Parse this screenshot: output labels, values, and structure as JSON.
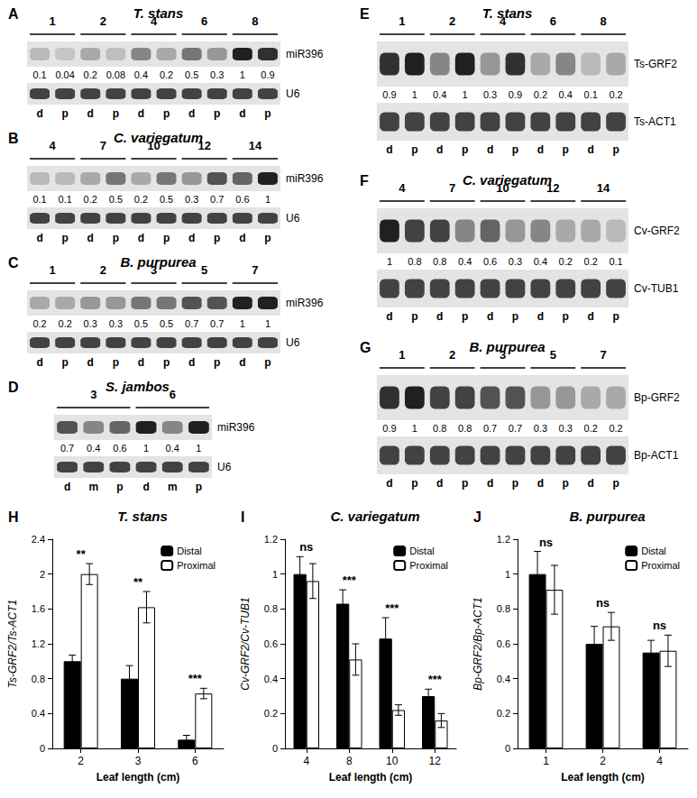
{
  "chart_data": [
    {
      "type": "blot",
      "panel": "A",
      "title": "T. stans",
      "groups": [
        "1",
        "2",
        "4",
        "6",
        "8"
      ],
      "lanes": [
        "d",
        "p",
        "d",
        "p",
        "d",
        "p",
        "d",
        "p",
        "d",
        "p"
      ],
      "rows": [
        {
          "label": "miR396",
          "values": [
            0.1,
            0.04,
            0.2,
            0.08,
            0.4,
            0.2,
            0.5,
            0.3,
            1,
            0.9
          ]
        },
        {
          "label": "U6"
        }
      ]
    },
    {
      "type": "blot",
      "panel": "B",
      "title": "C. variegatum",
      "groups": [
        "4",
        "7",
        "10",
        "12",
        "14"
      ],
      "lanes": [
        "d",
        "p",
        "d",
        "p",
        "d",
        "p",
        "d",
        "p",
        "d",
        "p"
      ],
      "rows": [
        {
          "label": "miR396",
          "values": [
            0.1,
            0.1,
            0.2,
            0.5,
            0.2,
            0.5,
            0.3,
            0.7,
            0.6,
            1
          ]
        },
        {
          "label": "U6"
        }
      ]
    },
    {
      "type": "blot",
      "panel": "C",
      "title": "B. purpurea",
      "groups": [
        "1",
        "2",
        "3",
        "5",
        "7"
      ],
      "lanes": [
        "d",
        "p",
        "d",
        "p",
        "d",
        "p",
        "d",
        "p",
        "d",
        "p"
      ],
      "rows": [
        {
          "label": "miR396",
          "values": [
            0.2,
            0.2,
            0.3,
            0.3,
            0.5,
            0.5,
            0.7,
            0.7,
            1,
            1
          ]
        },
        {
          "label": "U6"
        }
      ]
    },
    {
      "type": "blot",
      "panel": "D",
      "title": "S. jambos",
      "groups": [
        "3",
        "6"
      ],
      "lanes": [
        "d",
        "m",
        "p",
        "d",
        "m",
        "p"
      ],
      "rows": [
        {
          "label": "miR396",
          "values": [
            0.7,
            0.4,
            0.6,
            1,
            0.4,
            1
          ]
        },
        {
          "label": "U6"
        }
      ]
    },
    {
      "type": "blot",
      "panel": "E",
      "title": "T. stans",
      "groups": [
        "1",
        "2",
        "4",
        "6",
        "8"
      ],
      "lanes": [
        "d",
        "p",
        "d",
        "p",
        "d",
        "p",
        "d",
        "p",
        "d",
        "p"
      ],
      "rows": [
        {
          "label": "Ts-GRF2",
          "values": [
            0.9,
            1,
            0.4,
            1,
            0.3,
            0.9,
            0.2,
            0.4,
            0.1,
            0.2
          ]
        },
        {
          "label": "Ts-ACT1"
        }
      ]
    },
    {
      "type": "blot",
      "panel": "F",
      "title": "C. variegatum",
      "groups": [
        "4",
        "7",
        "10",
        "12",
        "14"
      ],
      "lanes": [
        "d",
        "p",
        "d",
        "p",
        "d",
        "p",
        "d",
        "p",
        "d",
        "p"
      ],
      "rows": [
        {
          "label": "Cv-GRF2",
          "values": [
            1,
            0.8,
            0.8,
            0.4,
            0.6,
            0.3,
            0.4,
            0.2,
            0.2,
            0.1
          ]
        },
        {
          "label": "Cv-TUB1"
        }
      ]
    },
    {
      "type": "blot",
      "panel": "G",
      "title": "B. purpurea",
      "groups": [
        "1",
        "2",
        "3",
        "5",
        "7"
      ],
      "lanes": [
        "d",
        "p",
        "d",
        "p",
        "d",
        "p",
        "d",
        "p",
        "d",
        "p"
      ],
      "rows": [
        {
          "label": "Bp-GRF2",
          "values": [
            0.9,
            1,
            0.8,
            0.8,
            0.7,
            0.7,
            0.3,
            0.3,
            0.2,
            0.2
          ]
        },
        {
          "label": "Bp-ACT1"
        }
      ]
    },
    {
      "type": "bar",
      "panel": "H",
      "title": "T. stans",
      "x_label": "Leaf length (cm)",
      "y_label": "Ts-GRF2/Ts-ACT1",
      "categories": [
        "2",
        "3",
        "6"
      ],
      "series": [
        {
          "name": "Distal",
          "color": "#000000",
          "values": [
            1,
            0.8,
            0.1
          ],
          "errors": [
            0.07,
            0.15,
            0.05
          ]
        },
        {
          "name": "Proximal",
          "color": "#ffffff",
          "values": [
            2,
            1.62,
            0.63
          ],
          "errors": [
            0.12,
            0.18,
            0.06
          ]
        }
      ],
      "annotations": [
        "**",
        "**",
        "***"
      ],
      "ylim": [
        0,
        2.4
      ],
      "yticks": [
        0,
        0.4,
        0.8,
        1.2,
        1.6,
        2,
        2.4
      ],
      "grid": false,
      "legend": "top-right"
    },
    {
      "type": "bar",
      "panel": "I",
      "title": "C. variegatum",
      "x_label": "Leaf length (cm)",
      "y_label": "Cv-GRF2/Cv-TUB1",
      "categories": [
        "4",
        "8",
        "10",
        "12"
      ],
      "series": [
        {
          "name": "Distal",
          "color": "#000000",
          "values": [
            1,
            0.83,
            0.63,
            0.3
          ],
          "errors": [
            0.1,
            0.08,
            0.12,
            0.04
          ]
        },
        {
          "name": "Proximal",
          "color": "#ffffff",
          "values": [
            0.96,
            0.51,
            0.22,
            0.16
          ],
          "errors": [
            0.1,
            0.09,
            0.03,
            0.04
          ]
        }
      ],
      "annotations": [
        "ns",
        "***",
        "***",
        "***"
      ],
      "ylim": [
        0,
        1.2
      ],
      "yticks": [
        0,
        0.2,
        0.4,
        0.6,
        0.8,
        1,
        1.2
      ],
      "grid": false,
      "legend": "top-right"
    },
    {
      "type": "bar",
      "panel": "J",
      "title": "B. purpurea",
      "x_label": "Leaf length (cm)",
      "y_label": "Bp-GRF2/Bp-ACT1",
      "categories": [
        "1",
        "2",
        "4"
      ],
      "series": [
        {
          "name": "Distal",
          "color": "#000000",
          "values": [
            1,
            0.6,
            0.55
          ],
          "errors": [
            0.13,
            0.1,
            0.07
          ]
        },
        {
          "name": "Proximal",
          "color": "#ffffff",
          "values": [
            0.91,
            0.7,
            0.56
          ],
          "errors": [
            0.14,
            0.08,
            0.09
          ]
        }
      ],
      "annotations": [
        "ns",
        "ns",
        "ns"
      ],
      "ylim": [
        0,
        1.2
      ],
      "yticks": [
        0,
        0.2,
        0.4,
        0.6,
        0.8,
        1,
        1.2
      ],
      "grid": false,
      "legend": "top-right"
    }
  ]
}
